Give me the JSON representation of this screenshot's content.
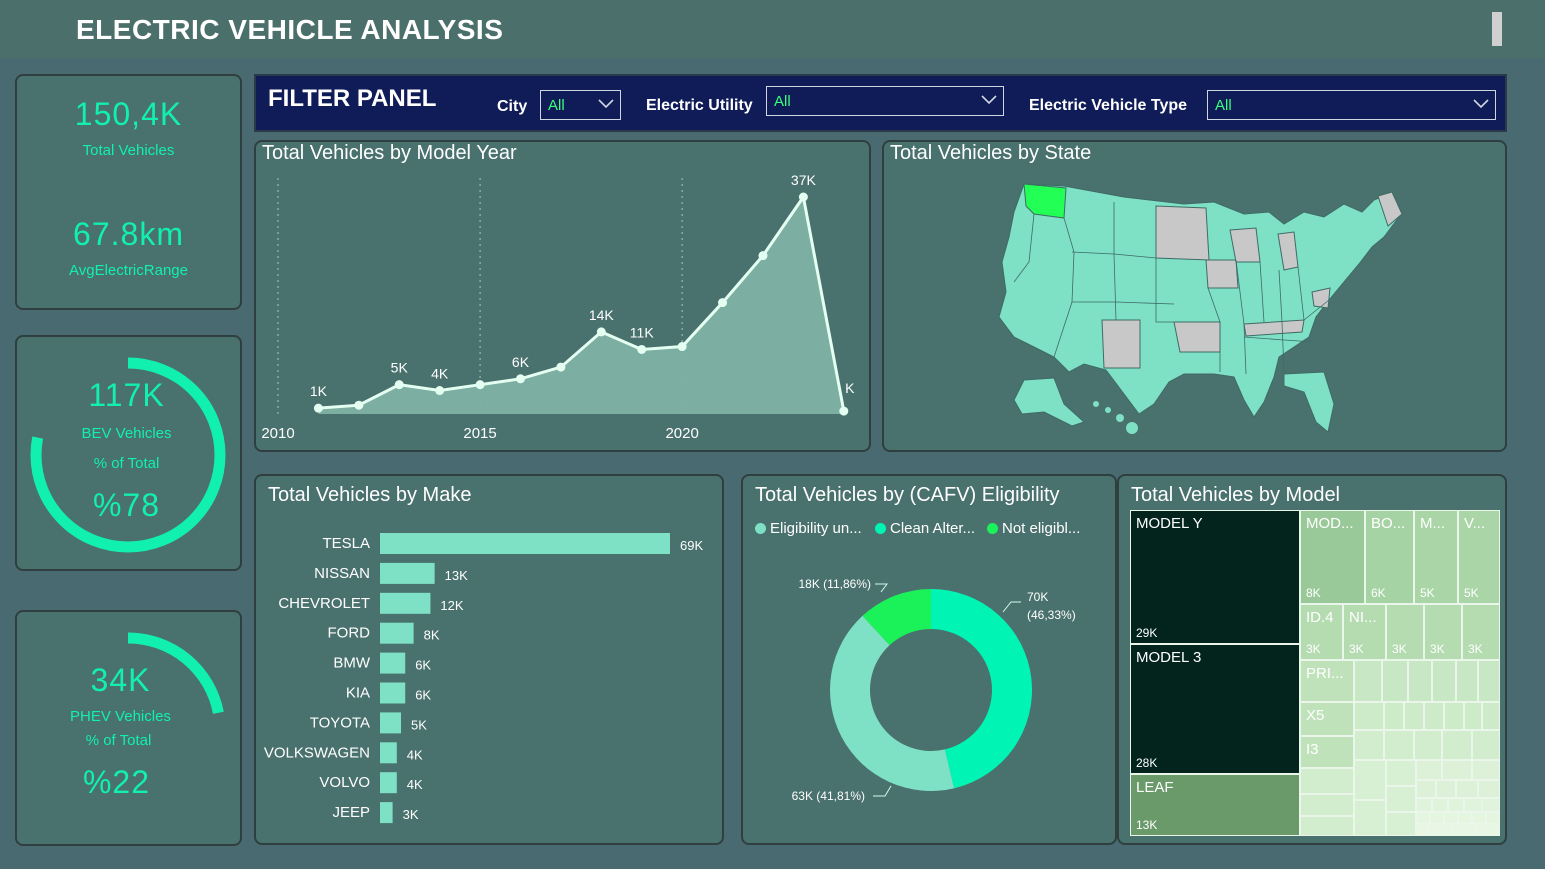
{
  "header": {
    "title": "ELECTRIC VEHICLE ANALYSIS"
  },
  "kpis": {
    "total": {
      "value": "150,4K",
      "label": "Total Vehicles"
    },
    "range": {
      "value": "67.8km",
      "label": "AvgElectricRange"
    },
    "bev": {
      "value": "117K",
      "label": "BEV Vehicles",
      "sublabel": "% of Total",
      "pct": "%78",
      "fraction": 0.78
    },
    "phev": {
      "value": "34K",
      "label": "PHEV Vehicles",
      "sublabel": "% of Total",
      "pct": "%22",
      "fraction": 0.22
    }
  },
  "filter": {
    "title": "FILTER PANEL",
    "city_label": "City",
    "city_value": "All",
    "utility_label": "Electric Utility",
    "utility_value": "All",
    "type_label": "Electric Vehicle Type",
    "type_value": "All"
  },
  "colors": {
    "accent": "#12f0b0",
    "mint": "#7ee0c4",
    "filter_bg": "#0f1c57",
    "card_bg": "#49716d"
  },
  "chart_data": [
    {
      "type": "area",
      "title": "Total Vehicles by Model Year",
      "x_ticks": [
        "2010",
        "2015",
        "2020"
      ],
      "x": [
        2011,
        2012,
        2013,
        2014,
        2015,
        2016,
        2017,
        2018,
        2019,
        2020,
        2021,
        2022,
        2023,
        2024
      ],
      "values": [
        1,
        1.5,
        5,
        4,
        5,
        6,
        8,
        14,
        11,
        11.5,
        19,
        27,
        37,
        0.5
      ],
      "point_labels": [
        "1K",
        "",
        "5K",
        "4K",
        "",
        "6K",
        "",
        "14K",
        "11K",
        "",
        "",
        "",
        "37K",
        "K"
      ],
      "xlim": [
        2010,
        2024.5
      ],
      "ylim": [
        0,
        37
      ]
    },
    {
      "type": "bar",
      "title": "Total Vehicles by Make",
      "categories": [
        "TESLA",
        "NISSAN",
        "CHEVROLET",
        "FORD",
        "BMW",
        "KIA",
        "TOYOTA",
        "VOLKSWAGEN",
        "VOLVO",
        "JEEP"
      ],
      "values": [
        69,
        13,
        12,
        8,
        6,
        6,
        5,
        4,
        4,
        3
      ],
      "labels": [
        "69K",
        "13K",
        "12K",
        "8K",
        "6K",
        "6K",
        "5K",
        "4K",
        "4K",
        "3K"
      ]
    },
    {
      "type": "pie",
      "title": "Total Vehicles by (CAFV) Eligibility",
      "series": [
        {
          "name": "Eligibility un...",
          "value": 63,
          "pct": 41.81,
          "label": "63K (41,81%)",
          "color": "#7ee0c4"
        },
        {
          "name": "Clean Alter...",
          "value": 70,
          "pct": 46.33,
          "label": "70K (46,33%)",
          "color": "#00f5b5"
        },
        {
          "name": "Not eligibl...",
          "value": 18,
          "pct": 11.86,
          "label": "18K (11,86%)",
          "color": "#1bf25a"
        }
      ]
    }
  ],
  "map": {
    "title": "Total Vehicles by State",
    "highlight_color": "#22ff55",
    "state_color": "#7ee0c4",
    "nodata_color": "#c8c8c8"
  },
  "treemap": {
    "title": "Total Vehicles by Model",
    "tiles": [
      {
        "name": "MODEL Y",
        "value": "29K"
      },
      {
        "name": "MODEL 3",
        "value": "28K"
      },
      {
        "name": "LEAF",
        "value": "13K"
      },
      {
        "name": "MOD...",
        "value": "8K"
      },
      {
        "name": "BO...",
        "value": "6K"
      },
      {
        "name": "M...",
        "value": "5K"
      },
      {
        "name": "V...",
        "value": "5K"
      },
      {
        "name": "ID.4",
        "value": "3K"
      },
      {
        "name": "NI...",
        "value": "3K"
      },
      {
        "name": "",
        "value": "3K"
      },
      {
        "name": "",
        "value": "3K"
      },
      {
        "name": "",
        "value": "3K"
      },
      {
        "name": "PRI...",
        "value": ""
      },
      {
        "name": "X5",
        "value": ""
      },
      {
        "name": "I3",
        "value": ""
      }
    ]
  }
}
